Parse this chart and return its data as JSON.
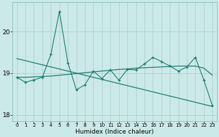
{
  "xlabel": "Humidex (Indice chaleur)",
  "background_color": "#cce9e9",
  "grid_color": "#aad0d0",
  "line_color": "#1a7a6e",
  "xlim": [
    -0.5,
    23.5
  ],
  "ylim": [
    17.85,
    20.7
  ],
  "yticks": [
    18,
    19,
    20
  ],
  "xticks": [
    0,
    1,
    2,
    3,
    4,
    5,
    6,
    7,
    8,
    9,
    10,
    11,
    12,
    13,
    14,
    15,
    16,
    17,
    18,
    19,
    20,
    21,
    22,
    23
  ],
  "jagged_y": [
    18.9,
    18.78,
    18.84,
    18.9,
    19.45,
    20.48,
    19.25,
    18.6,
    18.72,
    19.05,
    18.87,
    19.08,
    18.83,
    19.09,
    19.08,
    19.22,
    19.38,
    19.28,
    19.17,
    19.05,
    19.15,
    19.38,
    18.83,
    18.22
  ],
  "flat_trend_y": [
    18.9,
    18.9,
    18.91,
    18.92,
    18.93,
    18.95,
    18.97,
    18.99,
    19.01,
    19.03,
    19.05,
    19.07,
    19.09,
    19.1,
    19.12,
    19.13,
    19.14,
    19.15,
    19.16,
    19.17,
    19.17,
    19.17,
    19.12,
    18.95
  ],
  "desc_trend_start": 19.35,
  "desc_trend_end": 18.2,
  "desc_trend_x_start": 0,
  "desc_trend_x_end": 23
}
